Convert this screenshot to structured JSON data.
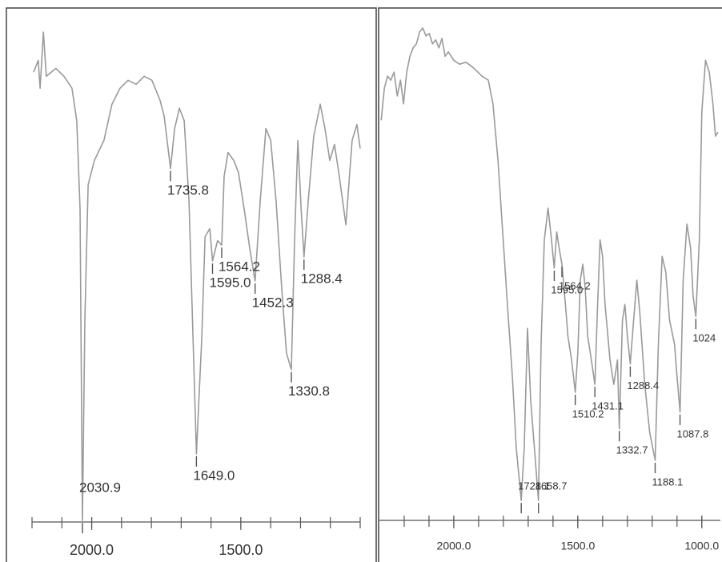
{
  "chart_data": [
    {
      "type": "line",
      "color": "#9a9a9a",
      "xlim": [
        2200,
        1100
      ],
      "ylim": [
        0,
        100
      ],
      "xticks": [
        {
          "value": 2000,
          "label": "2000.0"
        },
        {
          "value": 1500,
          "label": "1500.0"
        }
      ],
      "minor_xticks": [
        2200,
        2100,
        2000,
        1900,
        1800,
        1700,
        1600,
        1500,
        1400,
        1300,
        1200,
        1100
      ],
      "x": [
        2195,
        2179,
        2173,
        2162,
        2152,
        2136,
        2120,
        2093,
        2066,
        2050,
        2039,
        2030.9,
        2023,
        2012,
        1991,
        1959,
        1932,
        1905,
        1878,
        1851,
        1824,
        1798,
        1771,
        1757,
        1735.8,
        1722,
        1706,
        1690,
        1674,
        1658,
        1649.0,
        1631,
        1620,
        1604,
        1595.0,
        1578,
        1564.2,
        1556,
        1543,
        1524,
        1508,
        1489,
        1470,
        1452.3,
        1435,
        1416,
        1400,
        1382,
        1363,
        1347,
        1330.8,
        1320,
        1309,
        1298,
        1288.4,
        1274,
        1256,
        1234,
        1218,
        1202,
        1186,
        1170,
        1148,
        1127,
        1111,
        1100
      ],
      "values": [
        90.3,
        92.7,
        87.1,
        98.4,
        89.5,
        90.3,
        91.1,
        89.5,
        87.1,
        80.6,
        62.9,
        0.3,
        40.3,
        67.7,
        72.6,
        76.6,
        83.9,
        87.1,
        88.7,
        87.9,
        89.5,
        88.7,
        84.7,
        81.5,
        71.0,
        79.0,
        83.1,
        80.6,
        64.5,
        32.3,
        13.7,
        37.1,
        57.3,
        58.9,
        52.4,
        56.5,
        55.6,
        69.4,
        74.2,
        72.6,
        70.2,
        62.9,
        54.8,
        48.4,
        64.5,
        79.0,
        76.6,
        64.5,
        46.8,
        33.9,
        30.6,
        56.5,
        76.6,
        62.9,
        53.2,
        64.5,
        77.4,
        83.9,
        79.0,
        72.6,
        75.8,
        69.4,
        59.7,
        76.6,
        79.8,
        75.0
      ],
      "peaks": [
        {
          "value": 2030.9,
          "label": "2030.9"
        },
        {
          "value": 1735.8,
          "label": "1735.8"
        },
        {
          "value": 1649.0,
          "label": "1649.0"
        },
        {
          "value": 1595.0,
          "label": "1595.0"
        },
        {
          "value": 1564.2,
          "label": "1564.2"
        },
        {
          "value": 1452.3,
          "label": "1452.3"
        },
        {
          "value": 1330.8,
          "label": "1330.8"
        },
        {
          "value": 1288.4,
          "label": "1288.4"
        }
      ]
    },
    {
      "type": "line",
      "color": "#9a9a9a",
      "xlim": [
        2300,
        925
      ],
      "ylim": [
        0,
        100
      ],
      "xticks": [
        {
          "value": 2000,
          "label": "2000.0"
        },
        {
          "value": 1500,
          "label": "1500.0"
        },
        {
          "value": 1000,
          "label": "1000.0"
        }
      ],
      "minor_xticks": [
        2200,
        2100,
        2000,
        1900,
        1800,
        1700,
        1600,
        1500,
        1400,
        1300,
        1200,
        1100,
        1000
      ],
      "x": [
        2293,
        2280,
        2267,
        2254,
        2241,
        2228,
        2215,
        2203,
        2190,
        2177,
        2164,
        2151,
        2138,
        2125,
        2112,
        2099,
        2086,
        2073,
        2060,
        2048,
        2035,
        2022,
        2000,
        1977,
        1951,
        1919,
        1887,
        1861,
        1842,
        1822,
        1803,
        1784,
        1764,
        1748,
        1728.1,
        1716,
        1703,
        1690,
        1658.7,
        1648,
        1635,
        1620,
        1606,
        1595.0,
        1585,
        1575,
        1564.2,
        1550,
        1540,
        1525,
        1510.2,
        1500,
        1490,
        1480,
        1470,
        1460,
        1450,
        1431.1,
        1420,
        1410,
        1400,
        1390,
        1370,
        1355,
        1340,
        1332.7,
        1320,
        1310,
        1300,
        1288.4,
        1275,
        1262,
        1250,
        1230,
        1210,
        1188.1,
        1175,
        1160,
        1145,
        1130,
        1110,
        1100,
        1087.8,
        1075,
        1060,
        1045,
        1035,
        1024,
        1010,
        1000,
        985,
        970,
        955,
        945,
        935
      ],
      "values": [
        80.6,
        87.1,
        89.5,
        88.7,
        90.3,
        85.5,
        88.7,
        83.9,
        90.3,
        93.5,
        95.2,
        96.0,
        98.4,
        99.2,
        97.6,
        98.1,
        96.0,
        96.8,
        95.2,
        97.1,
        93.5,
        94.4,
        92.7,
        91.9,
        92.3,
        91.1,
        89.5,
        88.7,
        83.9,
        72.6,
        58.1,
        43.5,
        29.0,
        14.5,
        4.0,
        14.5,
        38.7,
        24.2,
        4.0,
        35.5,
        56.5,
        62.9,
        56.5,
        50.8,
        58.1,
        54.8,
        51.6,
        43.5,
        37.1,
        32.3,
        25.8,
        33.9,
        48.4,
        51.6,
        46.8,
        37.1,
        33.9,
        27.4,
        43.5,
        56.5,
        53.2,
        43.5,
        32.3,
        27.4,
        32.3,
        18.5,
        40.3,
        43.5,
        37.1,
        31.5,
        40.3,
        48.4,
        41.9,
        27.4,
        17.7,
        12.1,
        35.5,
        53.2,
        50.0,
        40.3,
        35.5,
        29.0,
        21.8,
        48.4,
        59.7,
        54.8,
        45.2,
        41.1,
        56.5,
        82.3,
        92.7,
        90.3,
        83.9,
        77.4,
        78.2
      ],
      "peaks": [
        {
          "value": 1728.1,
          "label": "1728.1"
        },
        {
          "value": 1658.7,
          "label": "1658.7"
        },
        {
          "value": 1595.0,
          "label": "1595.0"
        },
        {
          "value": 1564.2,
          "label": "1564.2"
        },
        {
          "value": 1510.2,
          "label": "1510.2"
        },
        {
          "value": 1431.1,
          "label": "1431.1"
        },
        {
          "value": 1332.7,
          "label": "1332.7"
        },
        {
          "value": 1288.4,
          "label": "1288.4"
        },
        {
          "value": 1188.1,
          "label": "1188.1"
        },
        {
          "value": 1087.8,
          "label": "1087.8"
        },
        1024
      ]
    }
  ]
}
